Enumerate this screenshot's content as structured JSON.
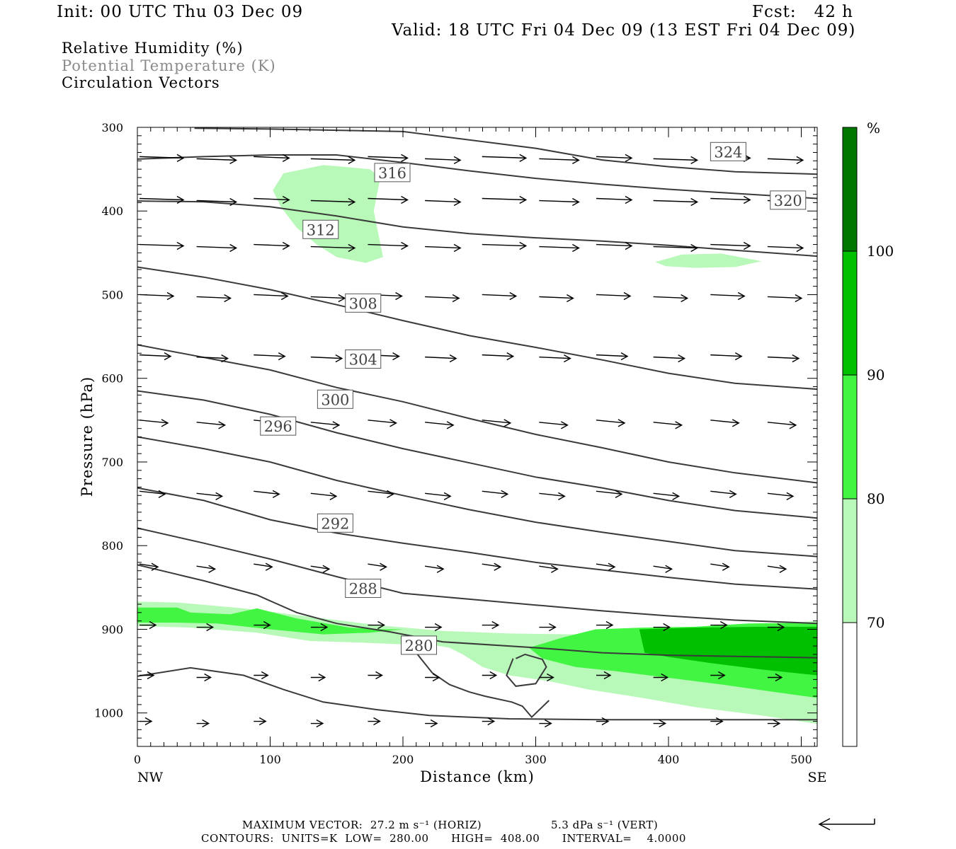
{
  "header": {
    "init": "Init: 00 UTC Thu 03 Dec 09",
    "fcst": "Fcst:   42 h",
    "valid": "Valid: 18 UTC Fri 04 Dec 09 (13 EST Fri 04 Dec 09)"
  },
  "fields": [
    {
      "label": "Relative Humidity (%)",
      "color": "#000000"
    },
    {
      "label": "Potential Temperature (K)",
      "color": "#8a8a8a"
    },
    {
      "label": "Circulation Vectors",
      "color": "#000000"
    }
  ],
  "chart_data": {
    "type": "cross-section contour",
    "xlabel": "Distance (km)",
    "ylabel": "Pressure (hPa)",
    "xlim": [
      0,
      512
    ],
    "ylim": [
      1040,
      300
    ],
    "x_ticks": [
      0,
      100,
      200,
      300,
      400,
      500
    ],
    "y_ticks": [
      300,
      400,
      500,
      600,
      700,
      800,
      900,
      1000
    ],
    "x_end_labels": {
      "left": "NW",
      "right": "SE"
    },
    "colorbar": {
      "unit": "%",
      "levels": [
        70,
        80,
        90,
        100
      ],
      "colors": [
        "#ffffff",
        "#b8f8b8",
        "#42f542",
        "#00c000",
        "#007800"
      ]
    },
    "rh_regions": [
      {
        "level": 70,
        "points": [
          [
            102,
            375
          ],
          [
            110,
            355
          ],
          [
            140,
            345
          ],
          [
            175,
            350
          ],
          [
            183,
            360
          ],
          [
            178,
            400
          ],
          [
            185,
            455
          ],
          [
            172,
            462
          ],
          [
            150,
            455
          ],
          [
            135,
            440
          ],
          [
            120,
            420
          ],
          [
            108,
            395
          ]
        ]
      },
      {
        "level": 70,
        "points": [
          [
            390,
            461
          ],
          [
            410,
            452
          ],
          [
            440,
            451
          ],
          [
            470,
            460
          ],
          [
            450,
            467
          ],
          [
            420,
            468
          ],
          [
            398,
            466
          ]
        ]
      },
      {
        "level": 70,
        "points": [
          [
            0,
            867
          ],
          [
            30,
            868
          ],
          [
            80,
            875
          ],
          [
            130,
            885
          ],
          [
            180,
            895
          ],
          [
            230,
            902
          ],
          [
            280,
            905
          ],
          [
            330,
            906
          ],
          [
            380,
            905
          ],
          [
            430,
            902
          ],
          [
            470,
            895
          ],
          [
            512,
            890
          ],
          [
            512,
            1013
          ],
          [
            470,
            1003
          ],
          [
            420,
            993
          ],
          [
            380,
            982
          ],
          [
            340,
            972
          ],
          [
            310,
            962
          ],
          [
            280,
            955
          ],
          [
            260,
            945
          ],
          [
            245,
            930
          ],
          [
            235,
            922
          ],
          [
            220,
            918
          ],
          [
            200,
            918
          ],
          [
            170,
            916
          ],
          [
            130,
            914
          ],
          [
            90,
            904
          ],
          [
            40,
            898
          ],
          [
            0,
            896
          ]
        ]
      },
      {
        "level": 80,
        "points": [
          [
            0,
            874
          ],
          [
            30,
            874
          ],
          [
            40,
            880
          ],
          [
            70,
            882
          ],
          [
            90,
            875
          ],
          [
            120,
            887
          ],
          [
            160,
            898
          ],
          [
            185,
            900
          ],
          [
            200,
            900
          ],
          [
            175,
            904
          ],
          [
            140,
            906
          ],
          [
            100,
            900
          ],
          [
            60,
            893
          ],
          [
            30,
            892
          ],
          [
            0,
            892
          ]
        ]
      },
      {
        "level": 80,
        "points": [
          [
            295,
            922
          ],
          [
            320,
            910
          ],
          [
            345,
            900
          ],
          [
            380,
            898
          ],
          [
            420,
            897
          ],
          [
            460,
            893
          ],
          [
            512,
            892
          ],
          [
            512,
            982
          ],
          [
            480,
            975
          ],
          [
            440,
            966
          ],
          [
            400,
            958
          ],
          [
            360,
            950
          ],
          [
            330,
            945
          ],
          [
            305,
            935
          ]
        ]
      },
      {
        "level": 90,
        "points": [
          [
            378,
            900
          ],
          [
            420,
            898
          ],
          [
            470,
            897
          ],
          [
            512,
            897
          ],
          [
            512,
            955
          ],
          [
            470,
            948
          ],
          [
            430,
            940
          ],
          [
            400,
            933
          ],
          [
            382,
            928
          ]
        ]
      }
    ],
    "theta_contours": [
      {
        "value": 324,
        "label_at": [
          445,
          329
        ],
        "points": [
          [
            0,
            338
          ],
          [
            50,
            335
          ],
          [
            100,
            333
          ],
          [
            150,
            333
          ],
          [
            200,
            342
          ],
          [
            250,
            352
          ],
          [
            300,
            361
          ],
          [
            350,
            368
          ],
          [
            400,
            374
          ],
          [
            450,
            379
          ],
          [
            512,
            385
          ]
        ]
      },
      {
        "value": 320,
        "label_at": [
          490,
          387
        ],
        "points": [
          [
            0,
            388
          ],
          [
            50,
            389
          ],
          [
            100,
            395
          ],
          [
            150,
            406
          ],
          [
            200,
            419
          ],
          [
            250,
            427
          ],
          [
            300,
            432
          ],
          [
            350,
            436
          ],
          [
            400,
            441
          ],
          [
            450,
            447
          ],
          [
            512,
            454
          ]
        ]
      },
      {
        "value": 316,
        "label_at": [
          192,
          354
        ],
        "points": [
          [
            43,
            301
          ],
          [
            100,
            302
          ],
          [
            200,
            305
          ],
          [
            300,
            325
          ],
          [
            350,
            339
          ],
          [
            400,
            347
          ],
          [
            450,
            353
          ],
          [
            512,
            356
          ]
        ]
      },
      {
        "value": 312,
        "label_at": [
          138,
          422
        ],
        "points": [
          [
            0,
            467
          ],
          [
            50,
            479
          ],
          [
            100,
            494
          ],
          [
            150,
            512
          ],
          [
            200,
            531
          ],
          [
            250,
            549
          ],
          [
            300,
            563
          ],
          [
            350,
            578
          ],
          [
            400,
            594
          ],
          [
            450,
            606
          ],
          [
            512,
            613
          ]
        ]
      },
      {
        "value": 308,
        "label_at": [
          170,
          510
        ],
        "points": [
          [
            0,
            560
          ],
          [
            50,
            575
          ],
          [
            100,
            590
          ],
          [
            150,
            611
          ],
          [
            200,
            628
          ],
          [
            250,
            648
          ],
          [
            300,
            667
          ],
          [
            350,
            683
          ],
          [
            400,
            700
          ],
          [
            450,
            713
          ],
          [
            512,
            725
          ]
        ]
      },
      {
        "value": 304,
        "label_at": [
          170,
          577
        ],
        "points": [
          [
            0,
            615
          ],
          [
            50,
            626
          ],
          [
            100,
            643
          ],
          [
            150,
            665
          ],
          [
            200,
            684
          ],
          [
            250,
            701
          ],
          [
            300,
            718
          ],
          [
            350,
            731
          ],
          [
            400,
            746
          ],
          [
            450,
            758
          ],
          [
            512,
            767
          ]
        ]
      },
      {
        "value": 300,
        "label_at": [
          149,
          625
        ],
        "points": [
          [
            0,
            670
          ],
          [
            50,
            684
          ],
          [
            100,
            700
          ],
          [
            150,
            722
          ],
          [
            200,
            740
          ],
          [
            250,
            757
          ],
          [
            300,
            772
          ],
          [
            350,
            784
          ],
          [
            400,
            795
          ],
          [
            450,
            806
          ],
          [
            512,
            813
          ]
        ]
      },
      {
        "value": 296,
        "label_at": [
          106,
          657
        ],
        "points": [
          [
            0,
            731
          ],
          [
            50,
            746
          ],
          [
            100,
            769
          ],
          [
            150,
            785
          ],
          [
            200,
            797
          ],
          [
            250,
            808
          ],
          [
            300,
            820
          ],
          [
            350,
            829
          ],
          [
            400,
            838
          ],
          [
            450,
            846
          ],
          [
            512,
            852
          ]
        ]
      },
      {
        "value": 292,
        "label_at": [
          149,
          773
        ],
        "points": [
          [
            0,
            779
          ],
          [
            50,
            797
          ],
          [
            100,
            816
          ],
          [
            150,
            837
          ],
          [
            200,
            857
          ],
          [
            250,
            864
          ],
          [
            300,
            871
          ],
          [
            350,
            878
          ],
          [
            400,
            884
          ],
          [
            450,
            889
          ],
          [
            512,
            893
          ]
        ]
      },
      {
        "value": 288,
        "label_at": [
          170,
          851
        ],
        "points": [
          [
            0,
            823
          ],
          [
            50,
            842
          ],
          [
            90,
            859
          ],
          [
            120,
            880
          ],
          [
            150,
            893
          ],
          [
            190,
            903
          ],
          [
            230,
            915
          ],
          [
            300,
            922
          ],
          [
            350,
            928
          ],
          [
            400,
            931
          ],
          [
            512,
            934
          ]
        ]
      },
      {
        "value": 280,
        "label_at": [
          212,
          919
        ],
        "points": [
          [
            0,
            956
          ],
          [
            40,
            946
          ],
          [
            80,
            955
          ],
          [
            110,
            972
          ],
          [
            140,
            987
          ],
          [
            180,
            996
          ],
          [
            220,
            1003
          ],
          [
            280,
            1007
          ],
          [
            350,
            1008
          ],
          [
            420,
            1008
          ],
          [
            512,
            1008
          ]
        ]
      }
    ],
    "vectors_rows": [
      335,
      385,
      440,
      500,
      572,
      650,
      735,
      822,
      895,
      955,
      1010
    ],
    "contour_info": {
      "units": "K",
      "low": "280.00",
      "high": "408.00",
      "interval": "4.0000"
    }
  },
  "footer": {
    "max_vector": "MAXIMUM VECTOR:  27.2 m s⁻¹ (HORIZ)",
    "vert": "5.3 dPa s⁻¹ (VERT)",
    "contours": "CONTOURS:  UNITS=K  LOW=  280.00      HIGH=  408.00      INTERVAL=    4.0000"
  }
}
